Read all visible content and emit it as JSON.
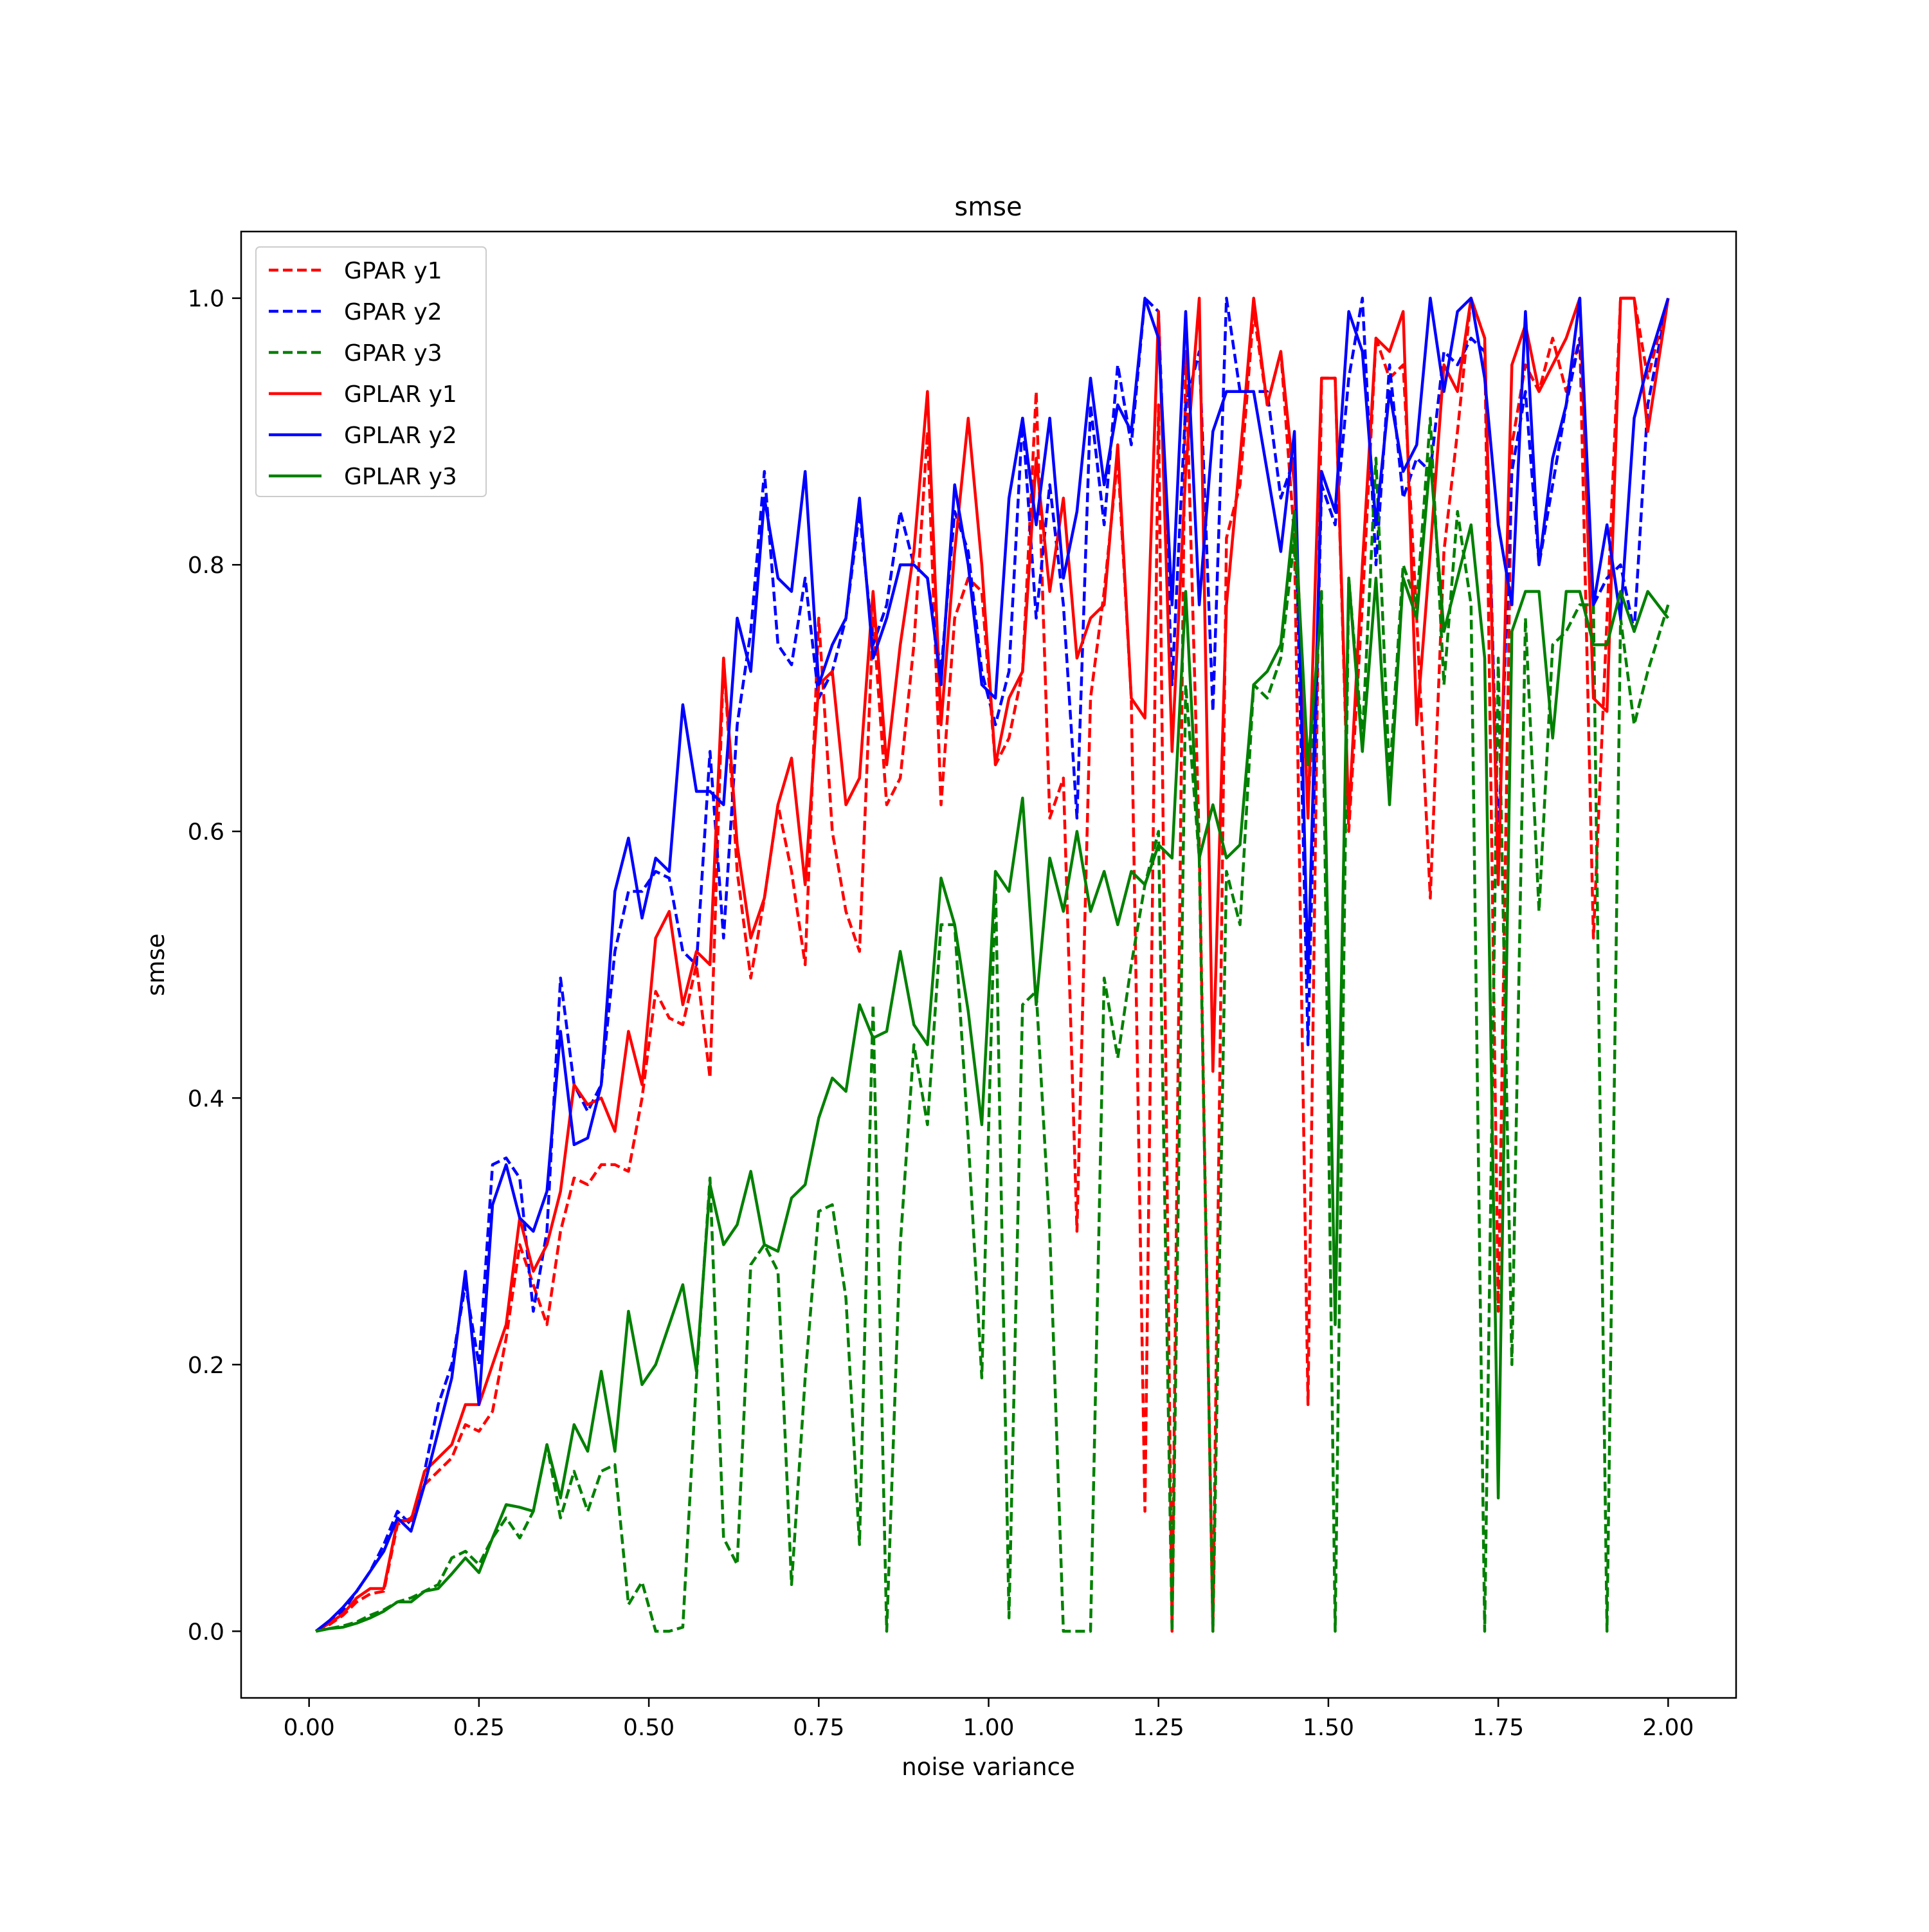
{
  "chart_data": {
    "type": "line",
    "title": "smse",
    "xlabel": "noise variance",
    "ylabel": "smse",
    "xlim": [
      -0.1,
      2.1
    ],
    "ylim": [
      -0.05,
      1.05
    ],
    "xticks": [
      0.0,
      0.25,
      0.5,
      0.75,
      1.0,
      1.25,
      1.5,
      1.75,
      2.0
    ],
    "xtick_labels": [
      "0.00",
      "0.25",
      "0.50",
      "0.75",
      "1.00",
      "1.25",
      "1.50",
      "1.75",
      "2.00"
    ],
    "yticks": [
      0.0,
      0.2,
      0.4,
      0.6,
      0.8,
      1.0
    ],
    "ytick_labels": [
      "0.0",
      "0.2",
      "0.4",
      "0.6",
      "0.8",
      "1.0"
    ],
    "grid": false,
    "legend_position": "top-left",
    "x": [
      0.01,
      0.03,
      0.05,
      0.07,
      0.09,
      0.11,
      0.13,
      0.15,
      0.17,
      0.19,
      0.21,
      0.23,
      0.25,
      0.27,
      0.29,
      0.31,
      0.33,
      0.35,
      0.37,
      0.39,
      0.41,
      0.43,
      0.45,
      0.47,
      0.49,
      0.51,
      0.53,
      0.55,
      0.57,
      0.59,
      0.61,
      0.63,
      0.65,
      0.67,
      0.69,
      0.71,
      0.73,
      0.75,
      0.77,
      0.79,
      0.81,
      0.83,
      0.85,
      0.87,
      0.89,
      0.91,
      0.93,
      0.95,
      0.97,
      0.99,
      1.01,
      1.03,
      1.05,
      1.07,
      1.09,
      1.11,
      1.13,
      1.15,
      1.17,
      1.19,
      1.21,
      1.23,
      1.25,
      1.27,
      1.29,
      1.31,
      1.33,
      1.35,
      1.37,
      1.39,
      1.41,
      1.43,
      1.45,
      1.47,
      1.49,
      1.51,
      1.53,
      1.55,
      1.57,
      1.59,
      1.61,
      1.63,
      1.65,
      1.67,
      1.69,
      1.71,
      1.73,
      1.75,
      1.77,
      1.79,
      1.81,
      1.83,
      1.85,
      1.87,
      1.89,
      1.91,
      1.93,
      1.95,
      1.97,
      2.0
    ],
    "series": [
      {
        "name": "GPAR y1",
        "color": "#ff0000",
        "dash": "dashed",
        "values": [
          0.0,
          0.005,
          0.012,
          0.022,
          0.028,
          0.03,
          0.08,
          0.085,
          0.11,
          0.12,
          0.13,
          0.155,
          0.15,
          0.165,
          0.22,
          0.29,
          0.26,
          0.23,
          0.3,
          0.34,
          0.335,
          0.35,
          0.35,
          0.345,
          0.4,
          0.48,
          0.46,
          0.455,
          0.5,
          0.415,
          0.73,
          0.57,
          0.49,
          0.55,
          0.62,
          0.57,
          0.5,
          0.76,
          0.6,
          0.54,
          0.51,
          0.76,
          0.62,
          0.64,
          0.74,
          0.9,
          0.62,
          0.76,
          0.79,
          0.78,
          0.65,
          0.67,
          0.72,
          0.93,
          0.61,
          0.64,
          0.3,
          0.7,
          0.78,
          0.88,
          0.7,
          0.09,
          0.92,
          0.0,
          0.96,
          0.59,
          0.0,
          0.82,
          0.86,
          0.99,
          0.92,
          0.96,
          0.82,
          0.17,
          0.94,
          0.94,
          0.6,
          0.77,
          0.97,
          0.94,
          0.95,
          0.76,
          0.55,
          0.81,
          0.9,
          1.0,
          0.97,
          0.24,
          0.89,
          0.95,
          0.93,
          0.97,
          0.93,
          0.97,
          0.52,
          0.76,
          1.0,
          1.0,
          0.94,
          1.0
        ]
      },
      {
        "name": "GPAR y2",
        "color": "#0000ff",
        "dash": "dashed",
        "values": [
          0.0,
          0.006,
          0.015,
          0.03,
          0.045,
          0.065,
          0.09,
          0.08,
          0.12,
          0.17,
          0.2,
          0.26,
          0.2,
          0.35,
          0.355,
          0.34,
          0.24,
          0.3,
          0.49,
          0.41,
          0.39,
          0.41,
          0.51,
          0.555,
          0.555,
          0.57,
          0.565,
          0.51,
          0.5,
          0.66,
          0.52,
          0.68,
          0.75,
          0.87,
          0.74,
          0.725,
          0.79,
          0.7,
          0.72,
          0.76,
          0.84,
          0.74,
          0.77,
          0.84,
          0.8,
          0.79,
          0.72,
          0.84,
          0.81,
          0.72,
          0.68,
          0.72,
          0.91,
          0.76,
          0.86,
          0.77,
          0.61,
          0.92,
          0.83,
          0.95,
          0.89,
          1.0,
          0.99,
          0.71,
          0.92,
          0.96,
          0.69,
          1.0,
          0.93,
          0.93,
          0.93,
          0.85,
          0.88,
          0.44,
          0.86,
          0.83,
          0.94,
          1.0,
          0.8,
          0.95,
          0.85,
          0.88,
          0.87,
          0.96,
          0.95,
          0.97,
          0.96,
          0.59,
          0.87,
          0.93,
          0.8,
          0.86,
          0.92,
          0.97,
          0.77,
          0.79,
          0.8,
          0.75,
          0.92,
          1.0
        ]
      },
      {
        "name": "GPAR y3",
        "color": "#008000",
        "dash": "dashed",
        "values": [
          0.0,
          0.002,
          0.004,
          0.007,
          0.012,
          0.016,
          0.022,
          0.025,
          0.03,
          0.035,
          0.055,
          0.06,
          0.05,
          0.07,
          0.085,
          0.07,
          0.09,
          0.14,
          0.085,
          0.12,
          0.09,
          0.12,
          0.125,
          0.02,
          0.037,
          0.0,
          0.0,
          0.003,
          0.19,
          0.34,
          0.07,
          0.05,
          0.275,
          0.29,
          0.27,
          0.035,
          0.19,
          0.315,
          0.32,
          0.25,
          0.065,
          0.47,
          0.0,
          0.29,
          0.44,
          0.38,
          0.53,
          0.53,
          0.37,
          0.19,
          0.565,
          0.01,
          0.47,
          0.48,
          0.3,
          0.0,
          0.0,
          0.0,
          0.49,
          0.43,
          0.5,
          0.56,
          0.6,
          0.0,
          0.71,
          0.58,
          0.0,
          0.57,
          0.53,
          0.71,
          0.7,
          0.73,
          0.82,
          0.62,
          0.78,
          0.0,
          0.79,
          0.67,
          0.88,
          0.64,
          0.8,
          0.77,
          0.91,
          0.71,
          0.84,
          0.77,
          0.0,
          0.73,
          0.2,
          0.76,
          0.54,
          0.74,
          0.75,
          0.77,
          0.77,
          0.0,
          0.76,
          0.68,
          0.72,
          0.77
        ]
      },
      {
        "name": "GPLAR y1",
        "color": "#ff0000",
        "dash": "solid",
        "values": [
          0.0,
          0.006,
          0.013,
          0.025,
          0.032,
          0.032,
          0.083,
          0.083,
          0.12,
          0.13,
          0.14,
          0.17,
          0.17,
          0.2,
          0.23,
          0.31,
          0.27,
          0.29,
          0.33,
          0.41,
          0.395,
          0.4,
          0.375,
          0.45,
          0.41,
          0.52,
          0.54,
          0.47,
          0.51,
          0.5,
          0.73,
          0.59,
          0.52,
          0.55,
          0.62,
          0.655,
          0.56,
          0.71,
          0.72,
          0.62,
          0.64,
          0.78,
          0.65,
          0.74,
          0.81,
          0.93,
          0.68,
          0.81,
          0.91,
          0.8,
          0.65,
          0.7,
          0.72,
          0.88,
          0.78,
          0.85,
          0.73,
          0.76,
          0.77,
          0.89,
          0.7,
          0.685,
          0.99,
          0.66,
          0.87,
          1.0,
          0.42,
          0.77,
          0.88,
          1.0,
          0.92,
          0.96,
          0.86,
          0.61,
          0.94,
          0.94,
          0.61,
          0.8,
          0.97,
          0.96,
          0.99,
          0.68,
          0.81,
          0.95,
          0.93,
          1.0,
          0.97,
          0.56,
          0.95,
          0.98,
          0.93,
          0.95,
          0.97,
          1.0,
          0.7,
          0.69,
          1.0,
          1.0,
          0.9,
          1.0
        ]
      },
      {
        "name": "GPLAR y2",
        "color": "#0000ff",
        "dash": "solid",
        "values": [
          0.0,
          0.008,
          0.018,
          0.03,
          0.045,
          0.06,
          0.085,
          0.075,
          0.11,
          0.15,
          0.19,
          0.27,
          0.17,
          0.32,
          0.35,
          0.31,
          0.3,
          0.33,
          0.45,
          0.365,
          0.37,
          0.41,
          0.555,
          0.595,
          0.535,
          0.58,
          0.57,
          0.695,
          0.63,
          0.63,
          0.62,
          0.76,
          0.72,
          0.85,
          0.79,
          0.78,
          0.87,
          0.71,
          0.74,
          0.76,
          0.85,
          0.73,
          0.76,
          0.8,
          0.8,
          0.79,
          0.71,
          0.86,
          0.8,
          0.71,
          0.7,
          0.85,
          0.91,
          0.83,
          0.91,
          0.79,
          0.84,
          0.94,
          0.86,
          0.92,
          0.9,
          1.0,
          0.97,
          0.77,
          0.99,
          0.77,
          0.9,
          0.93,
          0.93,
          0.93,
          0.87,
          0.81,
          0.9,
          0.49,
          0.87,
          0.84,
          0.99,
          0.96,
          0.83,
          0.93,
          0.87,
          0.89,
          1.0,
          0.93,
          0.99,
          1.0,
          0.94,
          0.83,
          0.77,
          0.99,
          0.8,
          0.88,
          0.92,
          1.0,
          0.77,
          0.83,
          0.76,
          0.91,
          0.95,
          1.0
        ]
      },
      {
        "name": "GPLAR y3",
        "color": "#008000",
        "dash": "solid",
        "values": [
          0.0,
          0.002,
          0.003,
          0.006,
          0.01,
          0.015,
          0.022,
          0.022,
          0.03,
          0.032,
          0.043,
          0.055,
          0.044,
          0.07,
          0.095,
          0.093,
          0.09,
          0.14,
          0.1,
          0.155,
          0.135,
          0.195,
          0.135,
          0.24,
          0.185,
          0.2,
          0.23,
          0.26,
          0.195,
          0.335,
          0.29,
          0.305,
          0.345,
          0.29,
          0.285,
          0.325,
          0.335,
          0.385,
          0.415,
          0.405,
          0.47,
          0.445,
          0.45,
          0.51,
          0.455,
          0.44,
          0.565,
          0.53,
          0.465,
          0.38,
          0.57,
          0.555,
          0.625,
          0.47,
          0.58,
          0.54,
          0.6,
          0.54,
          0.57,
          0.53,
          0.57,
          0.56,
          0.59,
          0.58,
          0.78,
          0.58,
          0.62,
          0.58,
          0.59,
          0.71,
          0.72,
          0.74,
          0.84,
          0.65,
          0.77,
          0.23,
          0.79,
          0.66,
          0.79,
          0.62,
          0.79,
          0.76,
          0.88,
          0.75,
          0.79,
          0.83,
          0.73,
          0.1,
          0.75,
          0.78,
          0.78,
          0.67,
          0.78,
          0.78,
          0.74,
          0.74,
          0.78,
          0.75,
          0.78,
          0.76
        ]
      }
    ]
  }
}
